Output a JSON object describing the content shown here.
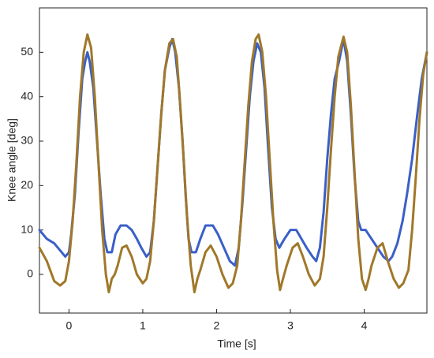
{
  "chart_data": {
    "type": "line",
    "x_label": "Time [s]",
    "y_label": "Knee angle [deg]",
    "xlim": [
      -0.4,
      4.85
    ],
    "ylim": [
      -8.7,
      60
    ],
    "xticks": [
      0,
      1,
      2,
      3,
      4
    ],
    "yticks": [
      0,
      10,
      20,
      30,
      40,
      50
    ],
    "grid": false,
    "series": [
      {
        "color": "#3a5fc8",
        "x": [
          -0.4,
          -0.3,
          -0.2,
          -0.1,
          -0.05,
          0.0,
          0.03,
          0.08,
          0.13,
          0.18,
          0.22,
          0.25,
          0.28,
          0.33,
          0.38,
          0.43,
          0.48,
          0.52,
          0.58,
          0.63,
          0.7,
          0.78,
          0.85,
          0.92,
          0.98,
          1.05,
          1.1,
          1.15,
          1.2,
          1.25,
          1.3,
          1.36,
          1.4,
          1.44,
          1.49,
          1.54,
          1.58,
          1.62,
          1.66,
          1.72,
          1.78,
          1.85,
          1.95,
          2.02,
          2.1,
          2.18,
          2.25,
          2.3,
          2.35,
          2.4,
          2.45,
          2.5,
          2.55,
          2.6,
          2.65,
          2.7,
          2.75,
          2.8,
          2.85,
          2.92,
          3.0,
          3.08,
          3.15,
          3.22,
          3.3,
          3.35,
          3.4,
          3.45,
          3.5,
          3.55,
          3.6,
          3.66,
          3.72,
          3.77,
          3.82,
          3.87,
          3.92,
          3.96,
          4.02,
          4.1,
          4.18,
          4.26,
          4.33,
          4.38,
          4.45,
          4.52,
          4.58,
          4.65,
          4.72,
          4.78,
          4.85
        ],
        "values": [
          10,
          8,
          7,
          5,
          4,
          5,
          9,
          18,
          32,
          44,
          48,
          50,
          48,
          42,
          30,
          18,
          8,
          5,
          5,
          9,
          11,
          11,
          10,
          8,
          6,
          4,
          5,
          12,
          24,
          36,
          46,
          51,
          53,
          50,
          42,
          30,
          18,
          8,
          5,
          5,
          8,
          11,
          11,
          9,
          6,
          3,
          2,
          6,
          16,
          28,
          40,
          48,
          52,
          50,
          42,
          28,
          15,
          8,
          6,
          8,
          10,
          10,
          8,
          6,
          4,
          3,
          6,
          14,
          26,
          36,
          44,
          48,
          53,
          48,
          36,
          22,
          12,
          10,
          10,
          8,
          6,
          4,
          3,
          4,
          7,
          12,
          18,
          26,
          36,
          44,
          50
        ]
      },
      {
        "color": "#a0782a",
        "x": [
          -0.4,
          -0.3,
          -0.2,
          -0.12,
          -0.05,
          0.0,
          0.05,
          0.1,
          0.15,
          0.2,
          0.25,
          0.3,
          0.35,
          0.4,
          0.45,
          0.5,
          0.54,
          0.58,
          0.62,
          0.66,
          0.72,
          0.78,
          0.85,
          0.92,
          1.0,
          1.05,
          1.1,
          1.15,
          1.2,
          1.25,
          1.3,
          1.36,
          1.41,
          1.46,
          1.5,
          1.55,
          1.6,
          1.65,
          1.7,
          1.74,
          1.78,
          1.85,
          1.92,
          2.0,
          2.08,
          2.16,
          2.22,
          2.28,
          2.33,
          2.38,
          2.43,
          2.48,
          2.53,
          2.57,
          2.62,
          2.67,
          2.72,
          2.77,
          2.82,
          2.86,
          2.9,
          2.95,
          3.03,
          3.1,
          3.17,
          3.25,
          3.33,
          3.4,
          3.45,
          3.5,
          3.55,
          3.6,
          3.65,
          3.72,
          3.77,
          3.82,
          3.87,
          3.92,
          3.97,
          4.02,
          4.06,
          4.1,
          4.18,
          4.25,
          4.32,
          4.4,
          4.47,
          4.53,
          4.6,
          4.65,
          4.7,
          4.75,
          4.8,
          4.85
        ],
        "values": [
          6,
          3,
          -1.5,
          -2.5,
          -1.5,
          3,
          12,
          25,
          40,
          50,
          54,
          51,
          40,
          25,
          10,
          0,
          -4,
          -1,
          0,
          2,
          6,
          6.5,
          4,
          0,
          -2,
          -1,
          3,
          12,
          24,
          36,
          46,
          52,
          53,
          49,
          40,
          27,
          13,
          2,
          -4,
          -1,
          1,
          5,
          6.5,
          4,
          0,
          -3,
          -2,
          2,
          12,
          25,
          38,
          48,
          53,
          54,
          50,
          40,
          26,
          12,
          1,
          -3.5,
          -1,
          2,
          6,
          7,
          4,
          0,
          -2.5,
          -1,
          4,
          15,
          28,
          40,
          49,
          53.5,
          50,
          38,
          23,
          8,
          -1,
          -3.5,
          -1,
          2,
          6,
          7,
          3,
          -1,
          -3,
          -2,
          1,
          10,
          22,
          35,
          45,
          50
        ]
      }
    ]
  }
}
